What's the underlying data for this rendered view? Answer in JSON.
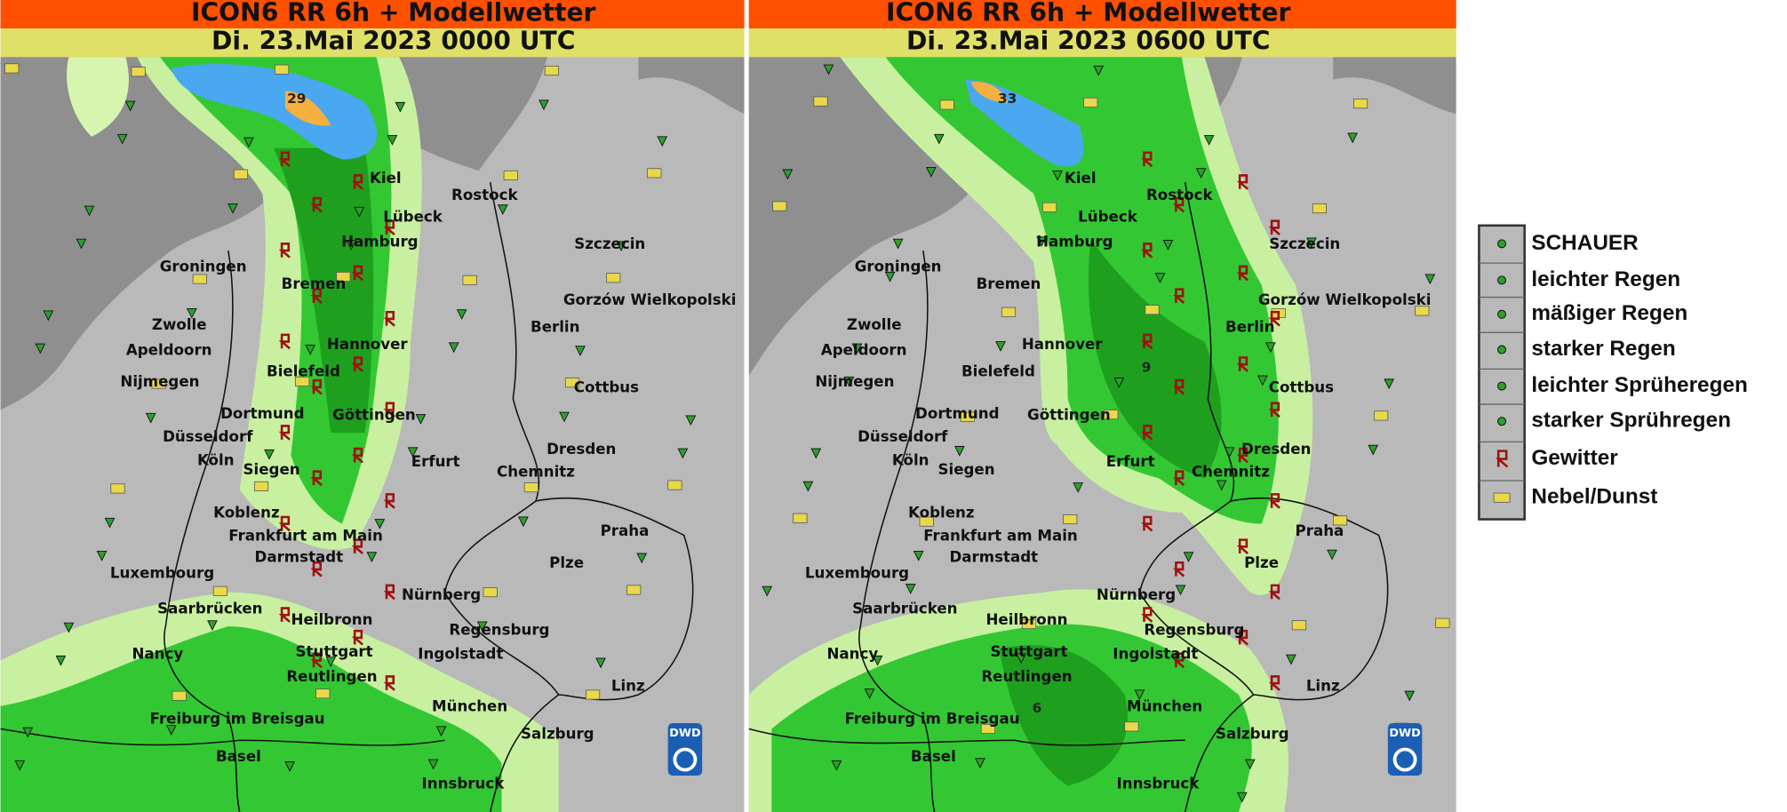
{
  "panels": [
    {
      "title": "ICON6 RR 6h + Modellwetter",
      "subtitle": "Di. 23.Mai 2023 0000 UTC",
      "max_labels": [
        29
      ]
    },
    {
      "title": "ICON6 RR 6h + Modellwetter",
      "subtitle": "Di. 23.Mai 2023 0600 UTC",
      "max_labels": [
        33,
        9,
        6
      ]
    }
  ],
  "cities": [
    "Kiel",
    "Rostock",
    "Lübeck",
    "Hamburg",
    "Szczecin",
    "Groningen",
    "Bremen",
    "Gorzów Wielkopolski",
    "Zwolle",
    "Berlin",
    "Apeldoorn",
    "Hannover",
    "Bielefeld",
    "Nijmegen",
    "Cottbus",
    "Dortmund",
    "Göttingen",
    "Düsseldorf",
    "Dresden",
    "Köln",
    "Siegen",
    "Erfurt",
    "Chemnitz",
    "Koblenz",
    "Praha",
    "Frankfurt am Main",
    "Darmstadt",
    "Luxembourg",
    "Plze",
    "Nürnberg",
    "Saarbrücken",
    "Heilbronn",
    "Regensburg",
    "Stuttgart",
    "Nancy",
    "Ingolstadt",
    "Reutlingen",
    "Linz",
    "München",
    "Freiburg im Breisgau",
    "Salzburg",
    "Basel",
    "Innsbruck"
  ],
  "logo": "DWD",
  "legend": [
    "SCHAUER",
    "leichter Regen",
    "mäßiger Regen",
    "starker Regen",
    "leichter Sprüheregen",
    "starker Sprühregen",
    "Gewitter",
    "Nebel/Dunst"
  ]
}
